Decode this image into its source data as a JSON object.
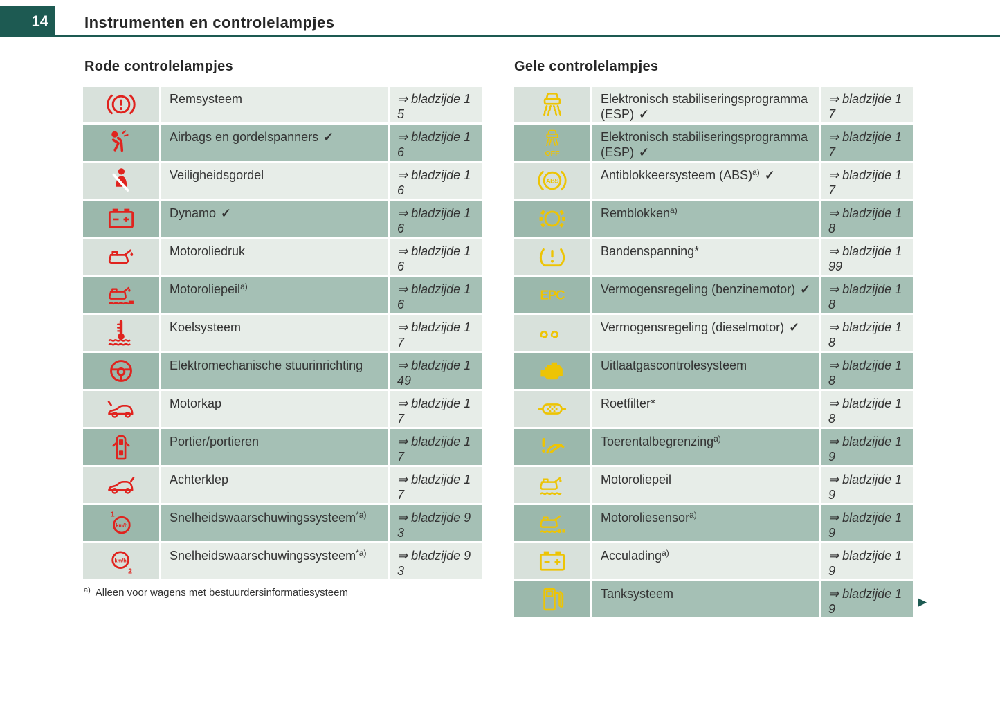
{
  "page": {
    "number": "14",
    "title": "Instrumenten en controlelampjes"
  },
  "glyphs": {
    "ref_prefix": "⇒ bladzijde",
    "check": "✓",
    "next_page_arrow": "▶"
  },
  "colors": {
    "teal": "#1d5a52",
    "red": "#e0231e",
    "yellow": "#edc405",
    "row_light": "#e7ede8",
    "row_light_icon": "#d8e1db",
    "row_dark": "#a5c0b5",
    "row_dark_icon": "#9bb8ac"
  },
  "sections": [
    {
      "id": "red-lamps",
      "heading": "Rode controlelampjes",
      "icon_color": "red",
      "rows": [
        {
          "icon": "brake-system-icon",
          "label": "Remsysteem",
          "sup": "",
          "check": false,
          "page": "15"
        },
        {
          "icon": "airbag-icon",
          "label": "Airbags en gordelspanners",
          "sup": "",
          "check": true,
          "page": "16"
        },
        {
          "icon": "seatbelt-icon",
          "label": "Veiligheidsgordel",
          "sup": "",
          "check": false,
          "page": "16"
        },
        {
          "icon": "battery-icon",
          "label": "Dynamo",
          "sup": "",
          "check": true,
          "page": "16"
        },
        {
          "icon": "oil-pressure-icon",
          "label": "Motoroliedruk",
          "sup": "",
          "check": false,
          "page": "16"
        },
        {
          "icon": "oil-level-icon",
          "label": "Motoroliepeil",
          "sup": "a)",
          "check": false,
          "page": "16"
        },
        {
          "icon": "coolant-icon",
          "label": "Koelsysteem",
          "sup": "",
          "check": false,
          "page": "17"
        },
        {
          "icon": "steering-icon",
          "label": "Elektromechanische stuurinrichting",
          "sup": "",
          "check": false,
          "page": "149"
        },
        {
          "icon": "hood-icon",
          "label": "Motorkap",
          "sup": "",
          "check": false,
          "page": "17"
        },
        {
          "icon": "door-icon",
          "label": "Portier/portieren",
          "sup": "",
          "check": false,
          "page": "17"
        },
        {
          "icon": "tailgate-icon",
          "label": "Achterklep",
          "sup": "",
          "check": false,
          "page": "17"
        },
        {
          "icon": "speed-warning-1-icon",
          "label": "Snelheidswaarschuwingssysteem",
          "sup": "*a)",
          "check": false,
          "page": "93"
        },
        {
          "icon": "speed-warning-2-icon",
          "label": "Snelheidswaarschuwingssysteem",
          "sup": "*a)",
          "check": false,
          "page": "93"
        }
      ],
      "footnote": {
        "marker": "a)",
        "text": "Alleen voor wagens met bestuurdersinformatiesysteem"
      }
    },
    {
      "id": "yellow-lamps",
      "heading": "Gele controlelampjes",
      "icon_color": "yellow",
      "rows": [
        {
          "icon": "esp-icon",
          "label": "Elektronisch stabiliseringsprogramma (ESP)",
          "sup": "",
          "check": true,
          "page": "17"
        },
        {
          "icon": "esp-off-icon",
          "label": "Elektronisch stabiliseringsprogramma (ESP)",
          "sup": "",
          "check": true,
          "page": "17"
        },
        {
          "icon": "abs-icon",
          "label": "Antiblokkeersysteem (ABS)",
          "sup": "a)",
          "check": true,
          "page": "17"
        },
        {
          "icon": "brake-pads-icon",
          "label": "Remblokken",
          "sup": "a)",
          "check": false,
          "page": "18"
        },
        {
          "icon": "tire-pressure-icon",
          "label": "Bandenspanning*",
          "sup": "",
          "check": false,
          "page": "199"
        },
        {
          "icon": "epc-icon",
          "label": "Vermogensregeling (benzinemotor)",
          "sup": "",
          "check": true,
          "page": "18"
        },
        {
          "icon": "glow-plug-icon",
          "label": "Vermogensregeling (dieselmotor)",
          "sup": "",
          "check": true,
          "page": "18"
        },
        {
          "icon": "engine-icon",
          "label": "Uitlaatgascontrolesysteem",
          "sup": "",
          "check": false,
          "page": "18"
        },
        {
          "icon": "particulate-filter-icon",
          "label": "Roetfilter*",
          "sup": "",
          "check": false,
          "page": "18"
        },
        {
          "icon": "rev-limiter-icon",
          "label": "Toerentalbegrenzing",
          "sup": "a)",
          "check": false,
          "page": "19"
        },
        {
          "icon": "oil-level-yellow-icon",
          "label": "Motoroliepeil",
          "sup": "",
          "check": false,
          "page": "19"
        },
        {
          "icon": "oil-sensor-icon",
          "label": "Motoroliesensor",
          "sup": "a)",
          "check": false,
          "page": "19"
        },
        {
          "icon": "battery-yellow-icon",
          "label": "Acculading",
          "sup": "a)",
          "check": false,
          "page": "19"
        },
        {
          "icon": "fuel-icon",
          "label": "Tanksysteem",
          "sup": "",
          "check": false,
          "page": "19"
        }
      ]
    }
  ]
}
